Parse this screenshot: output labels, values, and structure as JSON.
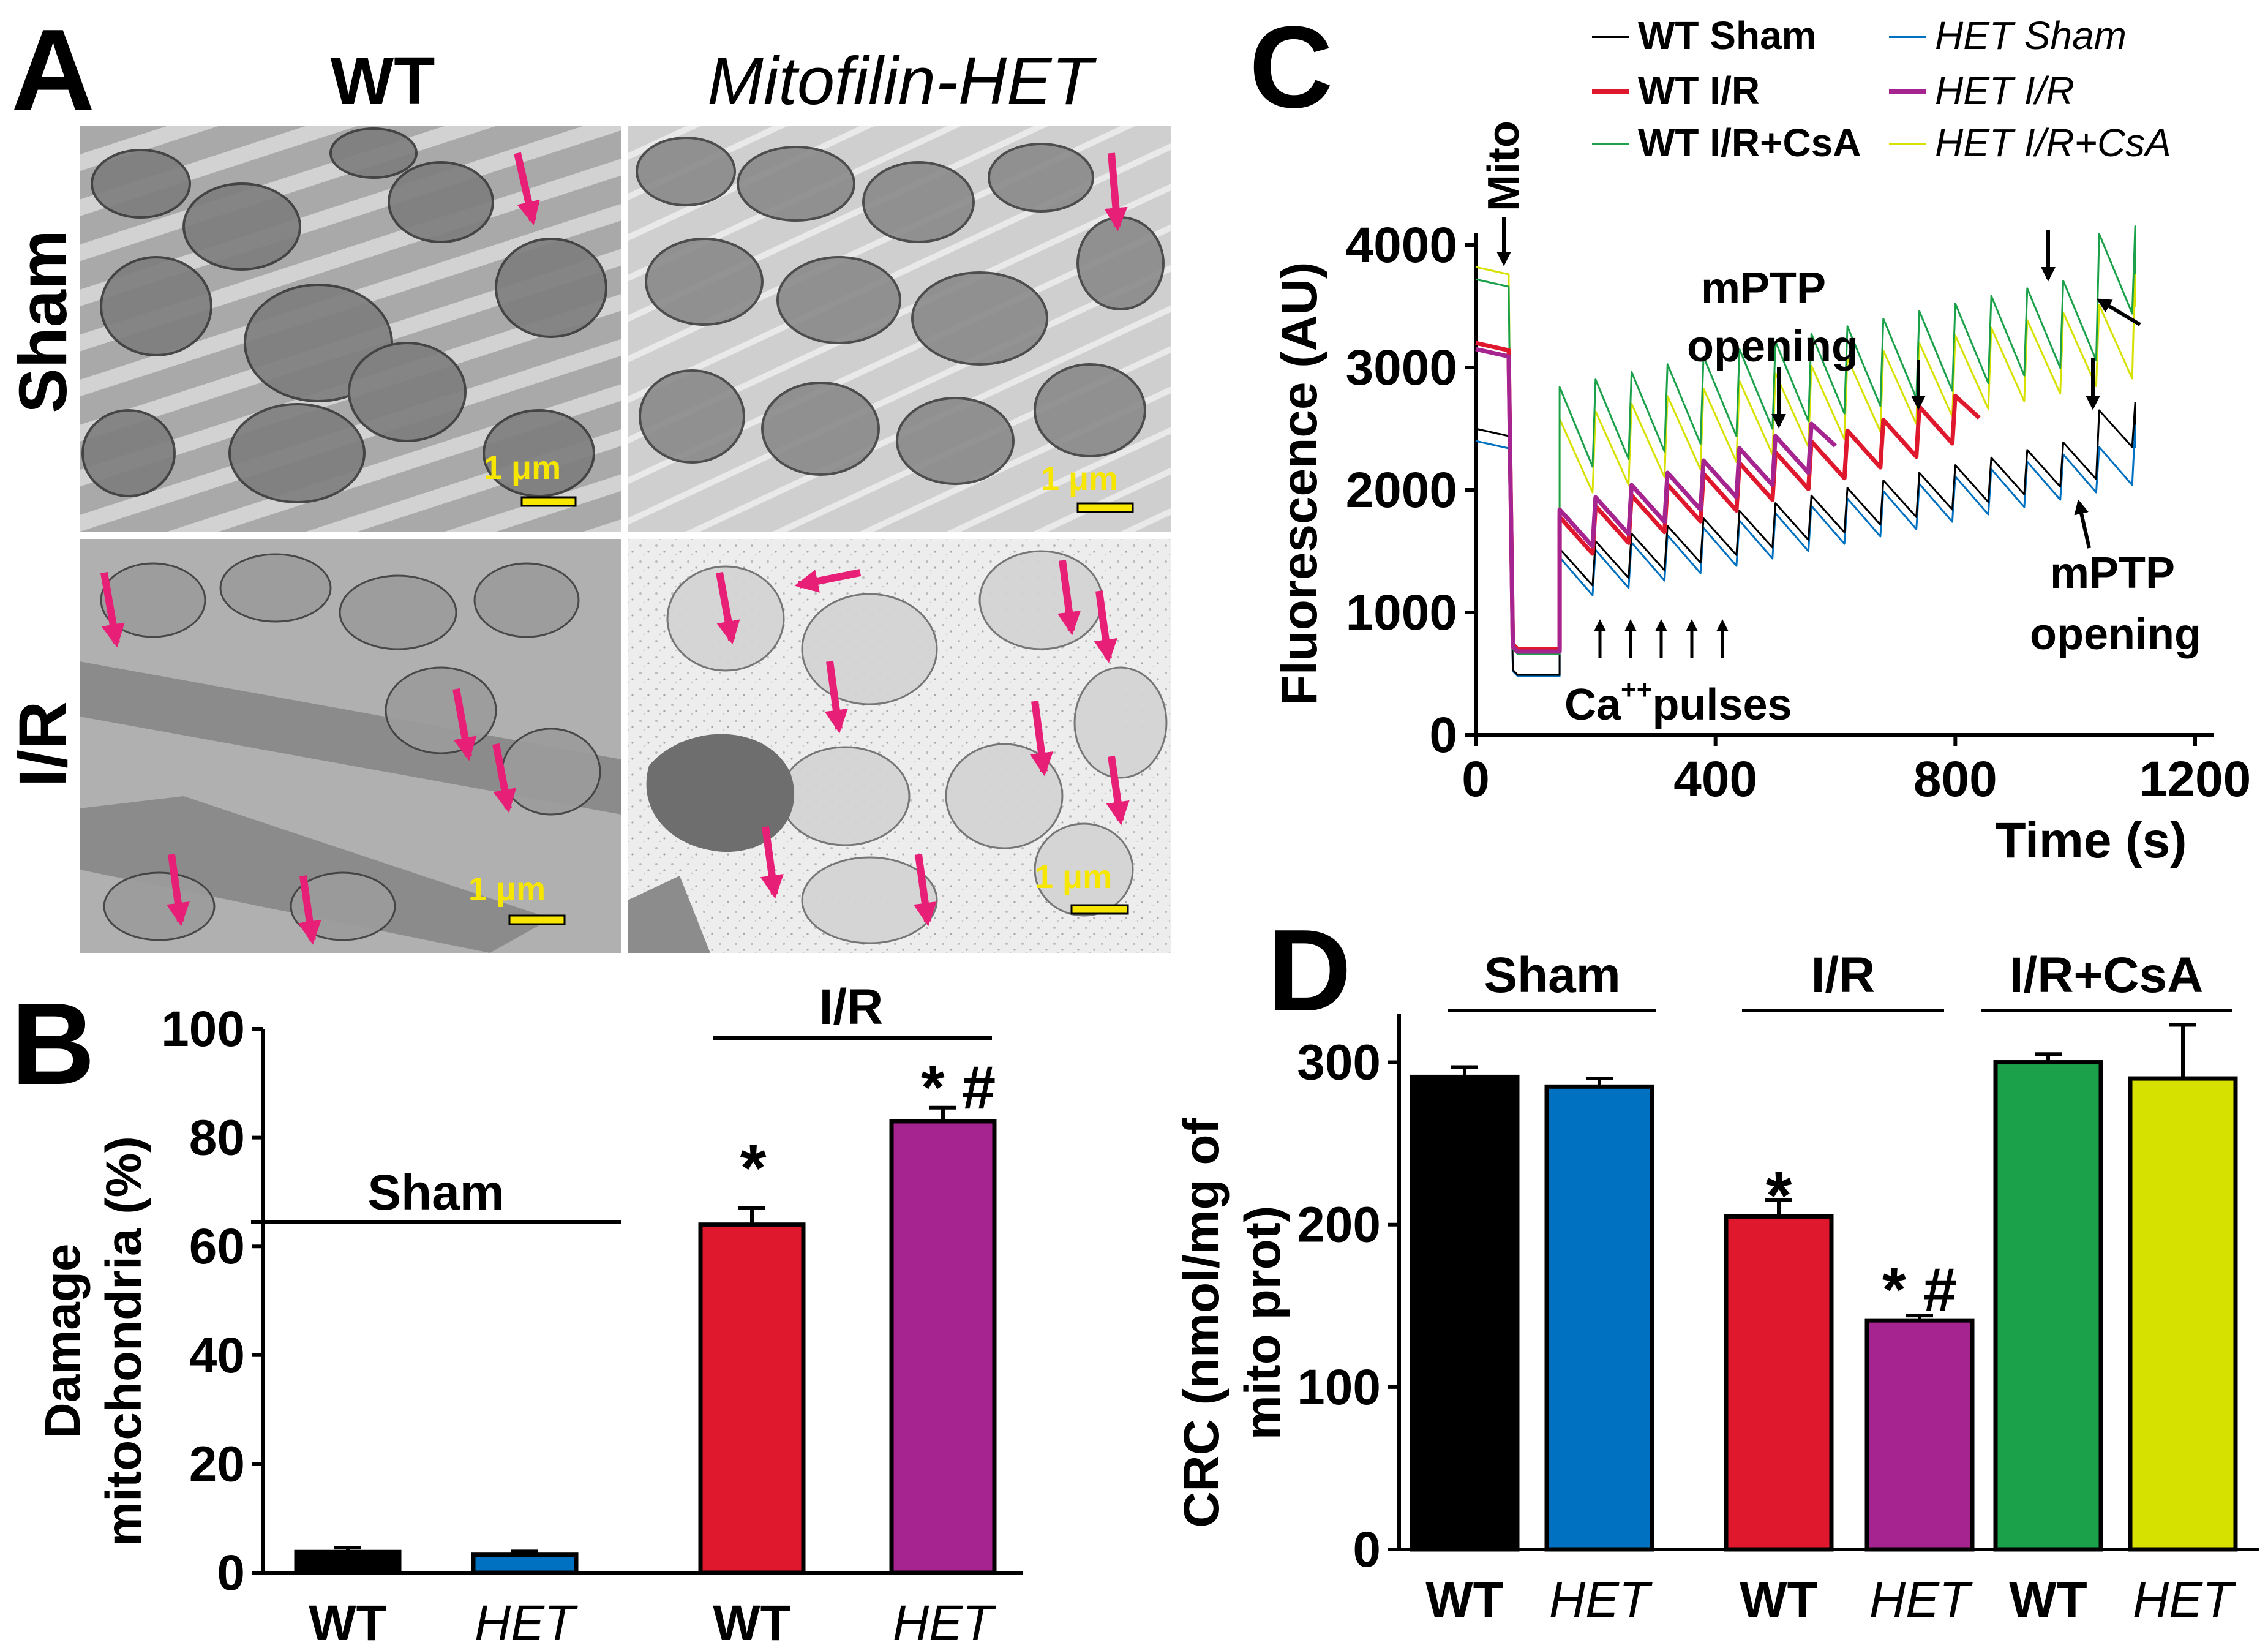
{
  "colors": {
    "wt_sham": "#000000",
    "het_sham": "#0070c0",
    "wt_ir": "#e0182d",
    "het_ir": "#a5248f",
    "wt_ir_csa": "#1aa14a",
    "het_ir_csa": "#d7e100",
    "arrow": "#e81f76",
    "scalebar": "#f7e600"
  },
  "panel_a": {
    "label": "A",
    "col_wt": "WT",
    "col_het": "Mitofilin-HET",
    "row_sham": "Sham",
    "row_ir": "I/R",
    "scale_label": "1 μm"
  },
  "panel_b": {
    "label": "B",
    "group_sham": "Sham",
    "group_ir": "I/R",
    "sig_wt": "*",
    "sig_het": "* #"
  },
  "panel_c": {
    "label": "C",
    "mito_label": "Mito",
    "mptp_top_1": "mPTP",
    "mptp_top_2": "opening",
    "mptp_bottom_1": "mPTP",
    "mptp_bottom_2": "opening",
    "ca_label": "Ca",
    "ca_sup": "++",
    "ca_rest": "pulses"
  },
  "panel_d": {
    "label": "D",
    "group_sham": "Sham",
    "group_ir": "I/R",
    "group_csa": "I/R+CsA",
    "sig_wt": "*",
    "sig_het": "* #"
  },
  "chart_data": [
    {
      "panel": "B",
      "type": "bar",
      "categories": [
        "WT",
        "HET",
        "WT",
        "HET"
      ],
      "values": [
        3.8,
        3.3,
        64,
        83
      ],
      "errors": [
        0.8,
        0.6,
        3,
        2.5
      ],
      "bar_colors": [
        "#000000",
        "#0070c0",
        "#e0182d",
        "#a5248f"
      ],
      "ylabel": "Damage mitochondria (%)",
      "ylim": [
        0,
        100
      ],
      "yticks": [
        0,
        20,
        40,
        60,
        80,
        100
      ]
    },
    {
      "panel": "C",
      "type": "line",
      "xlabel": "Time (s)",
      "ylabel": "Fluorescence (AU)",
      "xlim": [
        0,
        1200
      ],
      "ylim": [
        0,
        4000
      ],
      "xticks": [
        0,
        400,
        800,
        1200
      ],
      "yticks": [
        0,
        1000,
        2000,
        3000,
        4000
      ],
      "series": [
        {
          "name": "WT Sham",
          "italic": false,
          "color": "#000000",
          "stroke": 3,
          "pre": 2500,
          "post": 490,
          "start": 1100,
          "step": 62,
          "peak": 420,
          "fall": 300,
          "end": 1100,
          "final_step": 500,
          "jump_idx": 14
        },
        {
          "name": "WT I/R",
          "italic": false,
          "color": "#e0182d",
          "stroke": 7,
          "pre": 3200,
          "post": 700,
          "start": 1380,
          "step": 88,
          "peak": 400,
          "fall": 300,
          "end": 850,
          "final_step": 50,
          "jump_idx": 9
        },
        {
          "name": "WT I/R+CsA",
          "italic": false,
          "color": "#1aa14a",
          "stroke": 3,
          "pre": 3720,
          "post": 660,
          "start": 2080,
          "step": 62,
          "peak": 760,
          "fall": 650,
          "end": 1100,
          "final_step": 800,
          "jump_idx": 14
        },
        {
          "name": "HET Sham",
          "italic": true,
          "color": "#0070c0",
          "stroke": 3,
          "pre": 2400,
          "post": 480,
          "start": 1050,
          "step": 60,
          "peak": 400,
          "fall": 310,
          "end": 1100,
          "final_step": 300,
          "jump_idx": 15
        },
        {
          "name": "HET I/R",
          "italic": true,
          "color": "#a5248f",
          "stroke": 7,
          "pre": 3150,
          "post": 680,
          "start": 1420,
          "step": 100,
          "peak": 420,
          "fall": 300,
          "end": 610,
          "final_step": 350,
          "jump_idx": 7
        },
        {
          "name": "HET I/R+CsA",
          "italic": true,
          "color": "#d7e100",
          "stroke": 3,
          "pre": 3820,
          "post": 690,
          "start": 1900,
          "step": 62,
          "peak": 680,
          "fall": 600,
          "end": 1100,
          "final_step": 700,
          "jump_idx": 15
        }
      ]
    },
    {
      "panel": "D",
      "type": "bar",
      "categories": [
        "WT",
        "HET",
        "WT",
        "HET",
        "WT",
        "HET"
      ],
      "values": [
        291,
        285,
        205,
        141,
        300,
        290
      ],
      "errors": [
        6,
        5,
        10,
        3,
        5,
        33
      ],
      "bar_colors": [
        "#000000",
        "#0070c0",
        "#e0182d",
        "#a5248f",
        "#1aa14a",
        "#d7e100"
      ],
      "ylabel": "CRC (nmol/mg of mito prot)",
      "ylim": [
        0,
        330
      ],
      "yticks": [
        0,
        100,
        200,
        300
      ]
    }
  ]
}
